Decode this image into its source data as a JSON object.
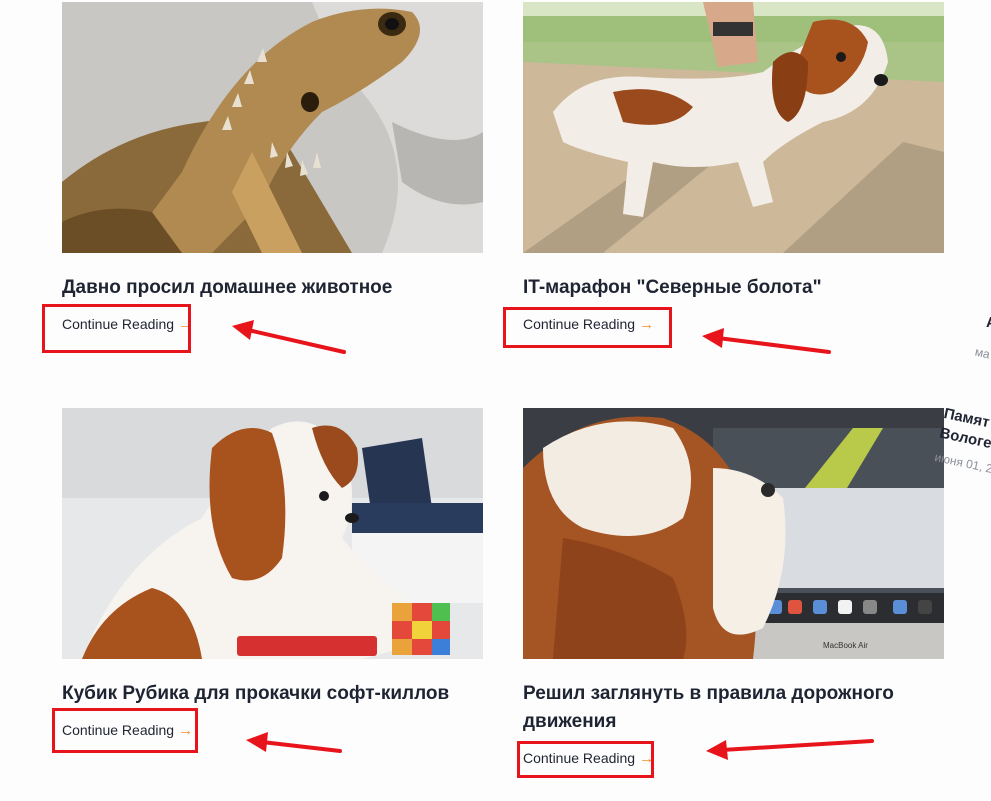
{
  "posts": [
    {
      "title": "Давно просил домашнее животное",
      "read_more": "Continue Reading",
      "image": "bearded-dragon-photo"
    },
    {
      "title": "IT-марафон \"Северные болота\"",
      "read_more": "Continue Reading",
      "image": "spaniel-in-park-photo"
    },
    {
      "title": "Кубик Рубика для прокачки софт-киллов",
      "read_more": "Continue Reading",
      "image": "spaniel-with-rubiks-cube-photo"
    },
    {
      "title": "Решил заглянуть в правила дорожного движения",
      "read_more": "Continue Reading",
      "image": "spaniel-in-front-of-laptop-photo"
    }
  ],
  "arrow_glyph": "→",
  "side_peek": {
    "line1": "А",
    "line2": "ма",
    "title_line1": "Памят",
    "title_line2": "Вологе",
    "date": "июня 01, 20"
  },
  "laptop_label": "MacBook Air",
  "colors": {
    "accent": "#f28c28",
    "annotation": "#e8141b",
    "title": "#1f2432"
  }
}
